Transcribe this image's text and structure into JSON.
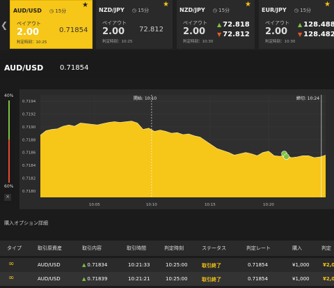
{
  "cards": [
    {
      "pair": "AUD/USD",
      "duration": "15分",
      "payout_label": "ペイアウト",
      "payout": "2.00",
      "rate": "0.71854",
      "judge": "判定時刻：10:25",
      "active": true
    },
    {
      "pair": "NZD/JPY",
      "duration": "15分",
      "payout_label": "ペイアウト",
      "payout": "2.00",
      "rate": "72.812",
      "judge": "判定時刻：10:25"
    },
    {
      "pair": "NZD/JPY",
      "duration": "15分",
      "payout_label": "ペイアウト",
      "payout": "2.00",
      "rate_up": "72.818",
      "rate_down": "72.812",
      "judge": "判定時刻：10:30"
    },
    {
      "pair": "EUR/JPY",
      "duration": "15分",
      "payout_label": "ペイアウト",
      "payout": "2.00",
      "rate_up": "128.488",
      "rate_down": "128.482",
      "judge": "判定時刻：10:30"
    }
  ],
  "title": {
    "pair": "AUD/USD",
    "rate": "0.71854"
  },
  "gauge": {
    "top": "40%",
    "bottom": "60%",
    "close": "×"
  },
  "chart_data": {
    "type": "area",
    "ylim": [
      0.7179,
      0.7195
    ],
    "yticks": [
      "0.7194",
      "0.7192",
      "0.7190",
      "0.7188",
      "0.7186",
      "0.7184",
      "0.7182",
      "0.7180"
    ],
    "xticks": [
      "10:05",
      "10:10",
      "10:15",
      "10:20"
    ],
    "start_label": "開始: 10:10",
    "end_label": "締切: 10:24",
    "x": [
      0,
      2,
      4,
      6,
      8,
      10,
      12,
      14,
      16,
      18,
      20,
      22,
      24,
      26,
      28,
      30,
      32,
      34,
      36,
      38,
      40,
      42,
      44,
      46,
      48,
      50,
      52,
      54,
      56,
      58,
      60,
      62,
      64,
      66,
      68,
      70,
      72,
      74,
      76,
      78,
      80,
      82,
      84,
      86,
      88,
      90,
      92,
      94,
      96,
      98,
      100
    ],
    "values": [
      0.71887,
      0.71894,
      0.71896,
      0.71897,
      0.71901,
      0.71903,
      0.71901,
      0.71906,
      0.71905,
      0.71904,
      0.71903,
      0.71905,
      0.71907,
      0.71908,
      0.71907,
      0.71908,
      0.71909,
      0.71906,
      0.71896,
      0.71898,
      0.71893,
      0.71895,
      0.71893,
      0.7189,
      0.71891,
      0.71888,
      0.71889,
      0.71886,
      0.71884,
      0.71878,
      0.71872,
      0.71866,
      0.71863,
      0.7186,
      0.71856,
      0.71858,
      0.7186,
      0.71858,
      0.71855,
      0.7186,
      0.71862,
      0.71855,
      0.71854,
      0.71856,
      0.71852,
      0.71853,
      0.71855,
      0.71855,
      0.71852,
      0.71853,
      0.71856
    ],
    "color": "#f6c619"
  },
  "section_title": "購入オプション詳細",
  "table": {
    "headers": [
      "タイプ",
      "取引原資産",
      "取引内容",
      "取引時間",
      "判定時刻",
      "ステータス",
      "判定レート",
      "購入",
      "判定"
    ],
    "rows": [
      {
        "asset": "AUD/USD",
        "content": "0.71834",
        "time": "10:21:33",
        "judge": "10:25:00",
        "status": "取引終了",
        "rate": "0.71854",
        "buy": "¥1,000",
        "result": "¥2,0"
      },
      {
        "asset": "AUD/USD",
        "content": "0.71839",
        "time": "10:21:21",
        "judge": "10:25:00",
        "status": "取引終了",
        "rate": "0.71854",
        "buy": "¥1,000",
        "result": "¥2,0"
      }
    ]
  }
}
